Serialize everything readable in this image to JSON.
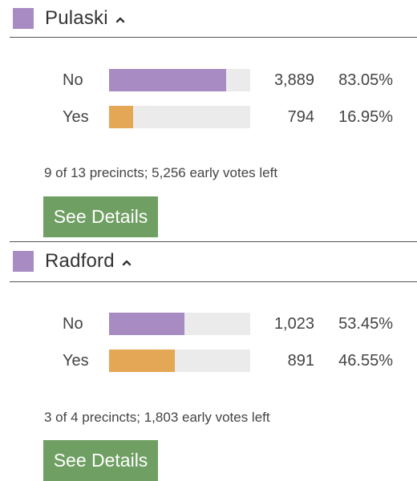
{
  "colors": {
    "county_swatch": "#a78bc2",
    "no_bar": "#a78bc2",
    "yes_bar": "#e3a756",
    "bar_track": "#ebebeb",
    "button_bg": "#6f9f62",
    "button_text": "#ffffff",
    "divider": "#555555"
  },
  "counties": [
    {
      "name": "Pulaski",
      "caret_icon": "chevron-up-icon",
      "results": [
        {
          "label": "No",
          "votes": "3,889",
          "percent": "83.05%",
          "fraction": 0.8305
        },
        {
          "label": "Yes",
          "votes": "794",
          "percent": "16.95%",
          "fraction": 0.1695
        }
      ],
      "precincts_text": "9 of 13 precincts; 5,256 early votes left",
      "details_label": "See Details"
    },
    {
      "name": "Radford",
      "caret_icon": "chevron-up-icon",
      "results": [
        {
          "label": "No",
          "votes": "1,023",
          "percent": "53.45%",
          "fraction": 0.5345
        },
        {
          "label": "Yes",
          "votes": "891",
          "percent": "46.55%",
          "fraction": 0.4655
        }
      ],
      "precincts_text": "3 of 4 precincts; 1,803 early votes left",
      "details_label": "See Details"
    }
  ]
}
